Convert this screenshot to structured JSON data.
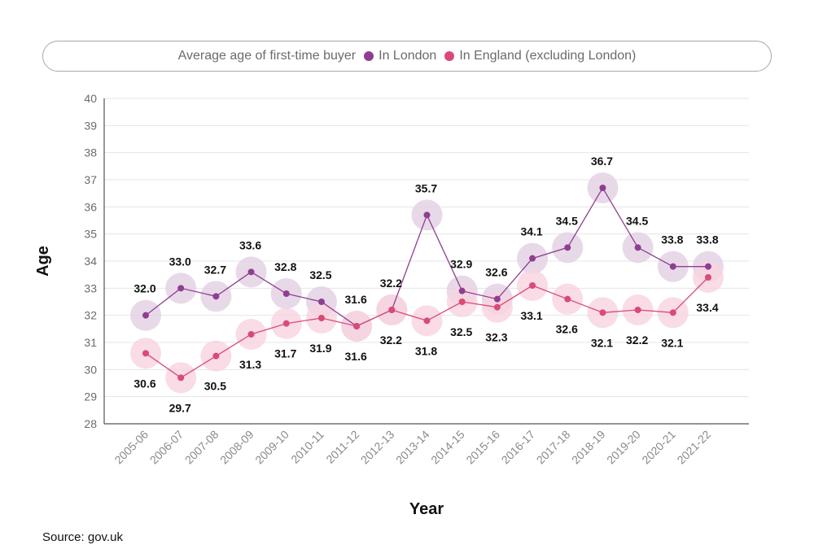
{
  "legend": {
    "title": "Average age of first-time buyer",
    "items": [
      {
        "label": "In London",
        "color": "#8e3f91"
      },
      {
        "label": "In England (excluding London)",
        "color": "#d94a77"
      }
    ]
  },
  "source": "Source: gov.uk",
  "chart_data": {
    "type": "line",
    "xlabel": "Year",
    "ylabel": "Age",
    "ylim": [
      28,
      40
    ],
    "yticks": [
      28,
      29,
      30,
      31,
      32,
      33,
      34,
      35,
      36,
      37,
      38,
      39,
      40
    ],
    "grid": true,
    "legend_position": "top",
    "categories": [
      "2005-06",
      "2006-07",
      "2007-08",
      "2008-09",
      "2009-10",
      "2010-11",
      "2011-12",
      "2012-13",
      "2013-14",
      "2014-15",
      "2015-16",
      "2016-17",
      "2017-18",
      "2018-19",
      "2019-20",
      "2020-21",
      "2021-22"
    ],
    "series": [
      {
        "name": "In London",
        "color": "#8e3f91",
        "halo": "#e2cfe4",
        "values": [
          32.0,
          33.0,
          32.7,
          33.6,
          32.8,
          32.5,
          31.6,
          32.2,
          35.7,
          32.9,
          32.6,
          34.1,
          34.5,
          36.7,
          34.5,
          33.8,
          33.8
        ],
        "labels": [
          "32.0",
          "33.0",
          "32.7",
          "33.6",
          "32.8",
          "32.5",
          "31.6",
          "32.2",
          "35.7",
          "32.9",
          "32.6",
          "34.1",
          "34.5",
          "36.7",
          "34.5",
          "33.8",
          "33.8"
        ]
      },
      {
        "name": "In England (excluding London)",
        "color": "#d94a77",
        "halo": "#f7d3de",
        "values": [
          30.6,
          29.7,
          30.5,
          31.3,
          31.7,
          31.9,
          31.6,
          32.2,
          31.8,
          32.5,
          32.3,
          33.1,
          32.6,
          32.1,
          32.2,
          32.1,
          33.4
        ],
        "labels": [
          "30.6",
          "29.7",
          "30.5",
          "31.3",
          "31.7",
          "31.9",
          "31.6",
          "32.2",
          "31.8",
          "32.5",
          "32.3",
          "33.1",
          "32.6",
          "32.1",
          "32.2",
          "32.1",
          "33.4"
        ]
      }
    ]
  }
}
